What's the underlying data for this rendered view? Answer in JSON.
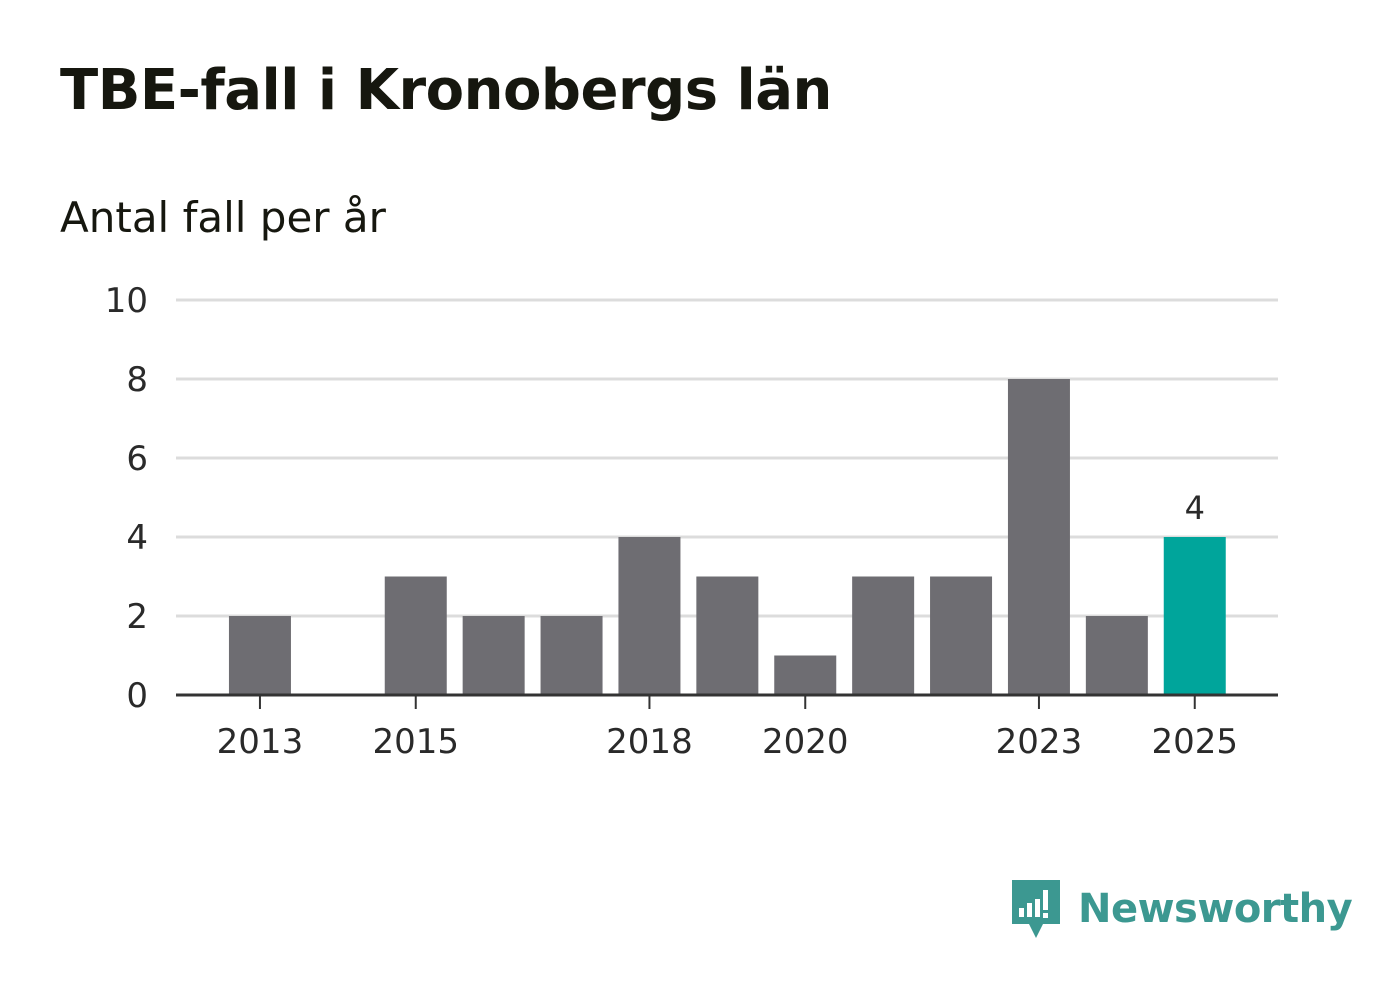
{
  "title": "TBE-fall i Kronobergs län",
  "subtitle": "Antal fall per år",
  "brand": {
    "name": "Newsworthy",
    "icon": "newsworthy-logo-icon",
    "color": "#3c9891"
  },
  "colors": {
    "bar": "#6e6d72",
    "highlight": "#00a59b",
    "grid": "#dcdcdc",
    "axis": "#333333",
    "text": "#2a2a2a"
  },
  "chart_data": {
    "type": "bar",
    "title": "TBE-fall i Kronobergs län",
    "subtitle": "Antal fall per år",
    "xlabel": "",
    "ylabel": "",
    "categories": [
      "2013",
      "2014",
      "2015",
      "2016",
      "2017",
      "2018",
      "2019",
      "2020",
      "2021",
      "2022",
      "2023",
      "2024",
      "2025"
    ],
    "values": [
      2,
      0,
      3,
      2,
      2,
      4,
      3,
      1,
      3,
      3,
      8,
      2,
      4
    ],
    "highlight_category": "2025",
    "highlight_label": "4",
    "x_tick_labels": [
      "2013",
      "2015",
      "2018",
      "2020",
      "2023",
      "2025"
    ],
    "y_ticks": [
      0,
      2,
      4,
      6,
      8,
      10
    ],
    "ylim": [
      0,
      10
    ],
    "grid": true
  }
}
